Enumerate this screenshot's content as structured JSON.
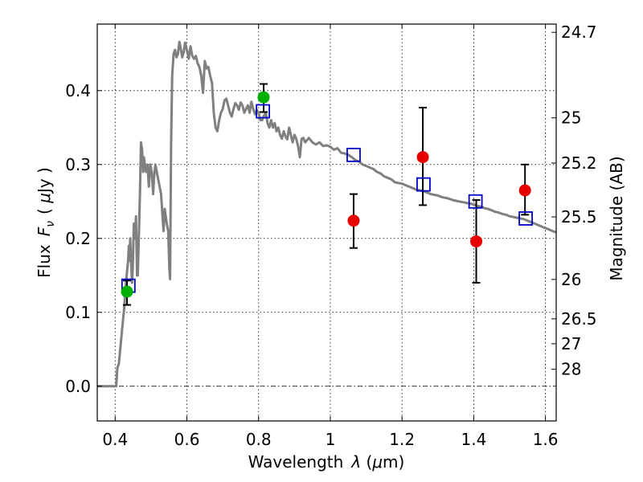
{
  "chart_data": {
    "type": "scatter",
    "title": "",
    "xlabel": "Wavelength  λ (μm)",
    "ylabel": "Flux  F_ν  ( μJy )",
    "ylabel_parts": {
      "flux": "Flux",
      "f": "F",
      "nu": "ν",
      "open": "( ",
      "mu": "μ",
      "unit": "Jy",
      "close": " )"
    },
    "xlabel_parts": {
      "word": "Wavelength",
      "lambda": "λ",
      "open": " (",
      "mu": "μ",
      "unit": "m)"
    },
    "y2label": "Magnitude (AB)",
    "xlim": [
      0.35,
      1.63
    ],
    "ylim": [
      -0.047,
      0.49
    ],
    "grid": true,
    "x_ticks": [
      {
        "value": 0.4,
        "label": "0.4"
      },
      {
        "value": 0.6,
        "label": "0.6"
      },
      {
        "value": 0.8,
        "label": "0.8"
      },
      {
        "value": 1.0,
        "label": "1"
      },
      {
        "value": 1.2,
        "label": "1.2"
      },
      {
        "value": 1.4,
        "label": "1.4"
      },
      {
        "value": 1.6,
        "label": "1.6"
      }
    ],
    "y_ticks": [
      {
        "value": 0.0,
        "label": "0.0"
      },
      {
        "value": 0.1,
        "label": "0.1"
      },
      {
        "value": 0.2,
        "label": "0.2"
      },
      {
        "value": 0.3,
        "label": "0.3"
      },
      {
        "value": 0.4,
        "label": "0.4"
      }
    ],
    "y2_ticks": [
      {
        "flux": 0.4789,
        "label": "24.7"
      },
      {
        "flux": 0.3631,
        "label": "25"
      },
      {
        "flux": 0.302,
        "label": "25.2"
      },
      {
        "flux": 0.2291,
        "label": "25.5"
      },
      {
        "flux": 0.1445,
        "label": "26"
      },
      {
        "flux": 0.0912,
        "label": "26.5"
      },
      {
        "flux": 0.0575,
        "label": "27"
      },
      {
        "flux": 0.0229,
        "label": "28"
      }
    ],
    "zero_line": 0.0,
    "model_curve": {
      "color": "#808080",
      "points": [
        [
          0.35,
          0.0
        ],
        [
          0.403,
          0.0
        ],
        [
          0.406,
          0.025
        ],
        [
          0.41,
          0.03
        ],
        [
          0.414,
          0.05
        ],
        [
          0.418,
          0.07
        ],
        [
          0.422,
          0.09
        ],
        [
          0.426,
          0.11
        ],
        [
          0.428,
          0.13
        ],
        [
          0.432,
          0.15
        ],
        [
          0.436,
          0.17
        ],
        [
          0.438,
          0.19
        ],
        [
          0.44,
          0.17
        ],
        [
          0.442,
          0.2
        ],
        [
          0.445,
          0.16
        ],
        [
          0.447,
          0.14
        ],
        [
          0.449,
          0.16
        ],
        [
          0.452,
          0.22
        ],
        [
          0.455,
          0.2
        ],
        [
          0.458,
          0.23
        ],
        [
          0.461,
          0.15
        ],
        [
          0.463,
          0.15
        ],
        [
          0.466,
          0.2
        ],
        [
          0.469,
          0.26
        ],
        [
          0.472,
          0.33
        ],
        [
          0.475,
          0.32
        ],
        [
          0.478,
          0.29
        ],
        [
          0.48,
          0.31
        ],
        [
          0.483,
          0.3
        ],
        [
          0.486,
          0.29
        ],
        [
          0.49,
          0.3
        ],
        [
          0.494,
          0.27
        ],
        [
          0.498,
          0.3
        ],
        [
          0.502,
          0.29
        ],
        [
          0.506,
          0.26
        ],
        [
          0.508,
          0.28
        ],
        [
          0.512,
          0.3
        ],
        [
          0.516,
          0.29
        ],
        [
          0.52,
          0.28
        ],
        [
          0.524,
          0.27
        ],
        [
          0.528,
          0.26
        ],
        [
          0.532,
          0.23
        ],
        [
          0.535,
          0.21
        ],
        [
          0.538,
          0.24
        ],
        [
          0.541,
          0.23
        ],
        [
          0.544,
          0.22
        ],
        [
          0.548,
          0.21
        ],
        [
          0.551,
          0.16
        ],
        [
          0.553,
          0.145
        ],
        [
          0.556,
          0.33
        ],
        [
          0.559,
          0.42
        ],
        [
          0.563,
          0.45
        ],
        [
          0.567,
          0.455
        ],
        [
          0.571,
          0.445
        ],
        [
          0.575,
          0.45
        ],
        [
          0.579,
          0.466
        ],
        [
          0.583,
          0.457
        ],
        [
          0.587,
          0.445
        ],
        [
          0.591,
          0.452
        ],
        [
          0.595,
          0.465
        ],
        [
          0.6,
          0.455
        ],
        [
          0.605,
          0.443
        ],
        [
          0.61,
          0.46
        ],
        [
          0.615,
          0.447
        ],
        [
          0.62,
          0.443
        ],
        [
          0.625,
          0.447
        ],
        [
          0.63,
          0.437
        ],
        [
          0.635,
          0.432
        ],
        [
          0.64,
          0.42
        ],
        [
          0.645,
          0.397
        ],
        [
          0.65,
          0.44
        ],
        [
          0.655,
          0.43
        ],
        [
          0.66,
          0.432
        ],
        [
          0.665,
          0.42
        ],
        [
          0.67,
          0.41
        ],
        [
          0.675,
          0.37
        ],
        [
          0.68,
          0.35
        ],
        [
          0.685,
          0.345
        ],
        [
          0.69,
          0.36
        ],
        [
          0.695,
          0.37
        ],
        [
          0.7,
          0.375
        ],
        [
          0.705,
          0.387
        ],
        [
          0.71,
          0.389
        ],
        [
          0.715,
          0.38
        ],
        [
          0.72,
          0.37
        ],
        [
          0.725,
          0.365
        ],
        [
          0.73,
          0.375
        ],
        [
          0.735,
          0.383
        ],
        [
          0.74,
          0.38
        ],
        [
          0.745,
          0.374
        ],
        [
          0.75,
          0.384
        ],
        [
          0.755,
          0.38
        ],
        [
          0.76,
          0.37
        ],
        [
          0.765,
          0.375
        ],
        [
          0.77,
          0.38
        ],
        [
          0.775,
          0.37
        ],
        [
          0.78,
          0.385
        ],
        [
          0.785,
          0.375
        ],
        [
          0.79,
          0.368
        ],
        [
          0.795,
          0.374
        ],
        [
          0.8,
          0.37
        ],
        [
          0.805,
          0.36
        ],
        [
          0.81,
          0.36
        ],
        [
          0.815,
          0.366
        ],
        [
          0.82,
          0.37
        ],
        [
          0.825,
          0.356
        ],
        [
          0.83,
          0.35
        ],
        [
          0.835,
          0.36
        ],
        [
          0.84,
          0.35
        ],
        [
          0.845,
          0.356
        ],
        [
          0.85,
          0.345
        ],
        [
          0.855,
          0.35
        ],
        [
          0.86,
          0.34
        ],
        [
          0.865,
          0.335
        ],
        [
          0.87,
          0.345
        ],
        [
          0.875,
          0.338
        ],
        [
          0.88,
          0.334
        ],
        [
          0.885,
          0.35
        ],
        [
          0.89,
          0.34
        ],
        [
          0.895,
          0.33
        ],
        [
          0.9,
          0.34
        ],
        [
          0.905,
          0.335
        ],
        [
          0.91,
          0.325
        ],
        [
          0.915,
          0.31
        ],
        [
          0.92,
          0.335
        ],
        [
          0.925,
          0.336
        ],
        [
          0.93,
          0.33
        ],
        [
          0.94,
          0.336
        ],
        [
          0.95,
          0.33
        ],
        [
          0.96,
          0.327
        ],
        [
          0.97,
          0.33
        ],
        [
          0.98,
          0.325
        ],
        [
          0.99,
          0.326
        ],
        [
          1.0,
          0.324
        ],
        [
          1.01,
          0.32
        ],
        [
          1.02,
          0.322
        ],
        [
          1.03,
          0.316
        ],
        [
          1.04,
          0.315
        ],
        [
          1.05,
          0.313
        ],
        [
          1.06,
          0.31
        ],
        [
          1.07,
          0.306
        ],
        [
          1.08,
          0.304
        ],
        [
          1.09,
          0.3
        ],
        [
          1.1,
          0.298
        ],
        [
          1.11,
          0.296
        ],
        [
          1.12,
          0.294
        ],
        [
          1.13,
          0.29
        ],
        [
          1.14,
          0.288
        ],
        [
          1.15,
          0.284
        ],
        [
          1.16,
          0.282
        ],
        [
          1.17,
          0.28
        ],
        [
          1.18,
          0.276
        ],
        [
          1.19,
          0.275
        ],
        [
          1.2,
          0.274
        ],
        [
          1.21,
          0.272
        ],
        [
          1.22,
          0.27
        ],
        [
          1.23,
          0.268
        ],
        [
          1.24,
          0.266
        ],
        [
          1.25,
          0.265
        ],
        [
          1.26,
          0.264
        ],
        [
          1.27,
          0.262
        ],
        [
          1.28,
          0.26
        ],
        [
          1.29,
          0.259
        ],
        [
          1.3,
          0.258
        ],
        [
          1.31,
          0.256
        ],
        [
          1.32,
          0.255
        ],
        [
          1.33,
          0.254
        ],
        [
          1.34,
          0.252
        ],
        [
          1.35,
          0.251
        ],
        [
          1.36,
          0.25
        ],
        [
          1.37,
          0.249
        ],
        [
          1.38,
          0.248
        ],
        [
          1.39,
          0.247
        ],
        [
          1.4,
          0.246
        ],
        [
          1.41,
          0.244
        ],
        [
          1.42,
          0.243
        ],
        [
          1.43,
          0.241
        ],
        [
          1.44,
          0.24
        ],
        [
          1.45,
          0.238
        ],
        [
          1.46,
          0.236
        ],
        [
          1.47,
          0.235
        ],
        [
          1.48,
          0.233
        ],
        [
          1.49,
          0.232
        ],
        [
          1.5,
          0.23
        ],
        [
          1.51,
          0.229
        ],
        [
          1.52,
          0.228
        ],
        [
          1.53,
          0.227
        ],
        [
          1.54,
          0.226
        ],
        [
          1.55,
          0.224
        ],
        [
          1.56,
          0.222
        ],
        [
          1.57,
          0.22
        ],
        [
          1.58,
          0.218
        ],
        [
          1.59,
          0.216
        ],
        [
          1.6,
          0.214
        ],
        [
          1.61,
          0.212
        ],
        [
          1.62,
          0.21
        ],
        [
          1.63,
          0.208
        ]
      ]
    },
    "model_photometry": {
      "color": "#0000cc",
      "marker": "open-square",
      "points": [
        {
          "x": 0.437,
          "y": 0.136
        },
        {
          "x": 0.812,
          "y": 0.372
        },
        {
          "x": 1.065,
          "y": 0.313
        },
        {
          "x": 1.26,
          "y": 0.273
        },
        {
          "x": 1.405,
          "y": 0.25
        },
        {
          "x": 1.545,
          "y": 0.227
        }
      ]
    },
    "observed_detections": {
      "color": "#00b000",
      "marker": "circle",
      "points": [
        {
          "x": 0.433,
          "y": 0.128,
          "yerr_low": 0.018,
          "yerr_high": 0.015
        },
        {
          "x": 0.814,
          "y": 0.391,
          "yerr_low": 0.02,
          "yerr_high": 0.018
        }
      ]
    },
    "observed_other": {
      "color": "#e80000",
      "marker": "circle",
      "points": [
        {
          "x": 1.065,
          "y": 0.224,
          "yerr_low": 0.037,
          "yerr_high": 0.036
        },
        {
          "x": 1.258,
          "y": 0.31,
          "yerr_low": 0.065,
          "yerr_high": 0.067
        },
        {
          "x": 1.407,
          "y": 0.196,
          "yerr_low": 0.056,
          "yerr_high": 0.056
        },
        {
          "x": 1.543,
          "y": 0.265,
          "yerr_low": 0.033,
          "yerr_high": 0.035
        }
      ]
    }
  }
}
